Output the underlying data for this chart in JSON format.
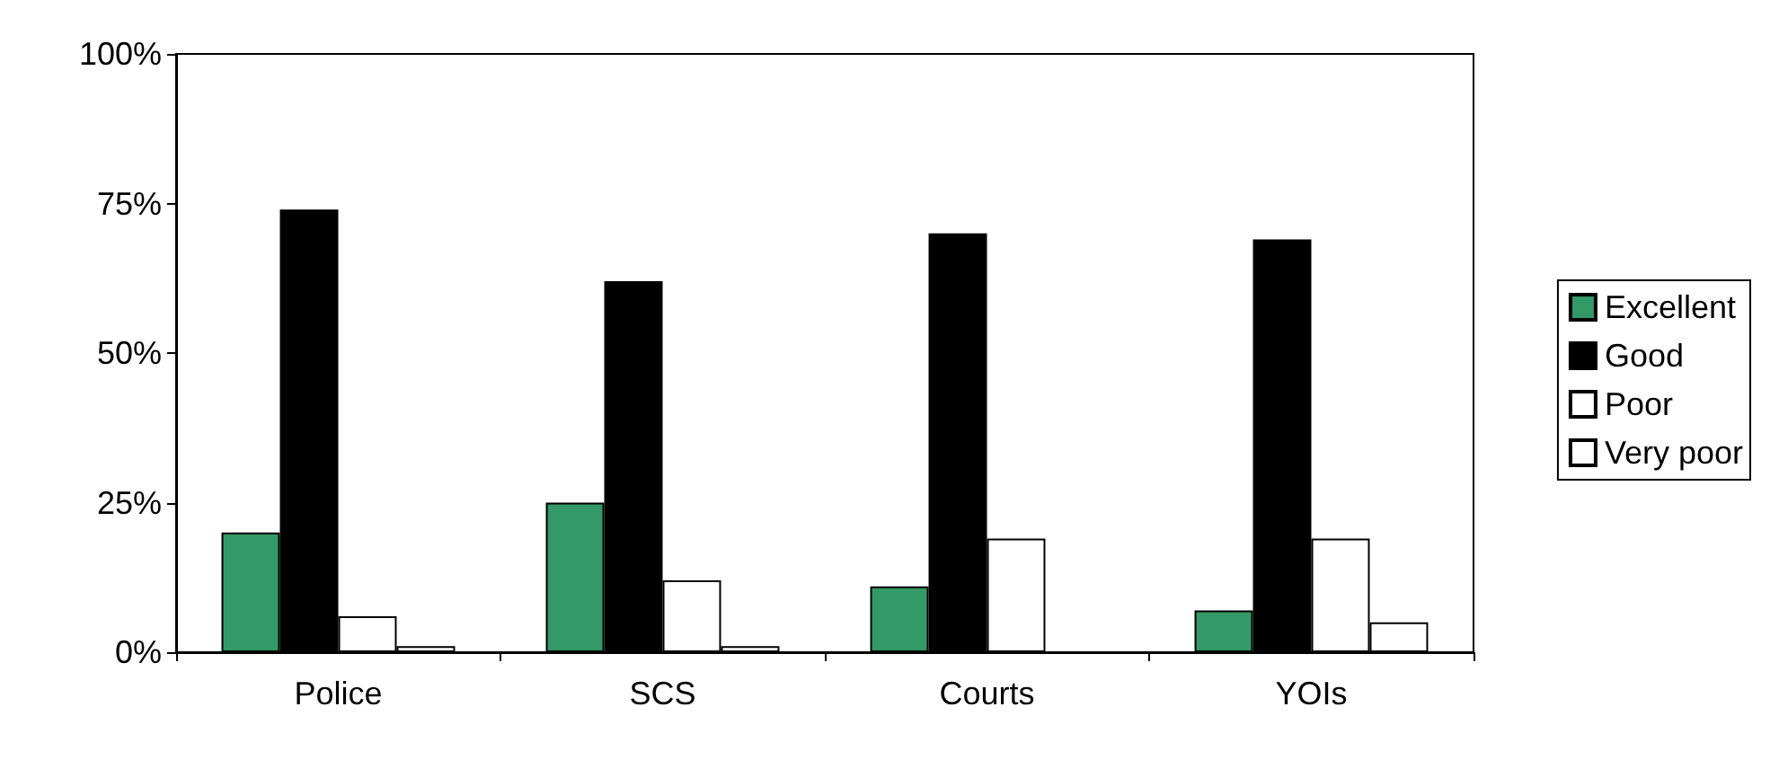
{
  "chart_data": {
    "type": "bar",
    "categories": [
      "Police",
      "SCS",
      "Courts",
      "YOIs"
    ],
    "series": [
      {
        "name": "Excellent",
        "color": "#339966",
        "values": [
          20,
          25,
          11,
          7
        ]
      },
      {
        "name": "Good",
        "color": "#000000",
        "values": [
          74,
          62,
          70,
          69
        ]
      },
      {
        "name": "Poor",
        "color": "#ffffff",
        "values": [
          6,
          12,
          19,
          19
        ]
      },
      {
        "name": "Very poor",
        "color": "#ffffff",
        "values": [
          1,
          1,
          null,
          5
        ]
      }
    ],
    "ylim": [
      0,
      100
    ],
    "yticks": [
      {
        "value": 0,
        "label": "0%"
      },
      {
        "value": 25,
        "label": "25%"
      },
      {
        "value": 50,
        "label": "50%"
      },
      {
        "value": 75,
        "label": "75%"
      },
      {
        "value": 100,
        "label": "100%"
      }
    ],
    "grid": false,
    "legend": "right"
  }
}
